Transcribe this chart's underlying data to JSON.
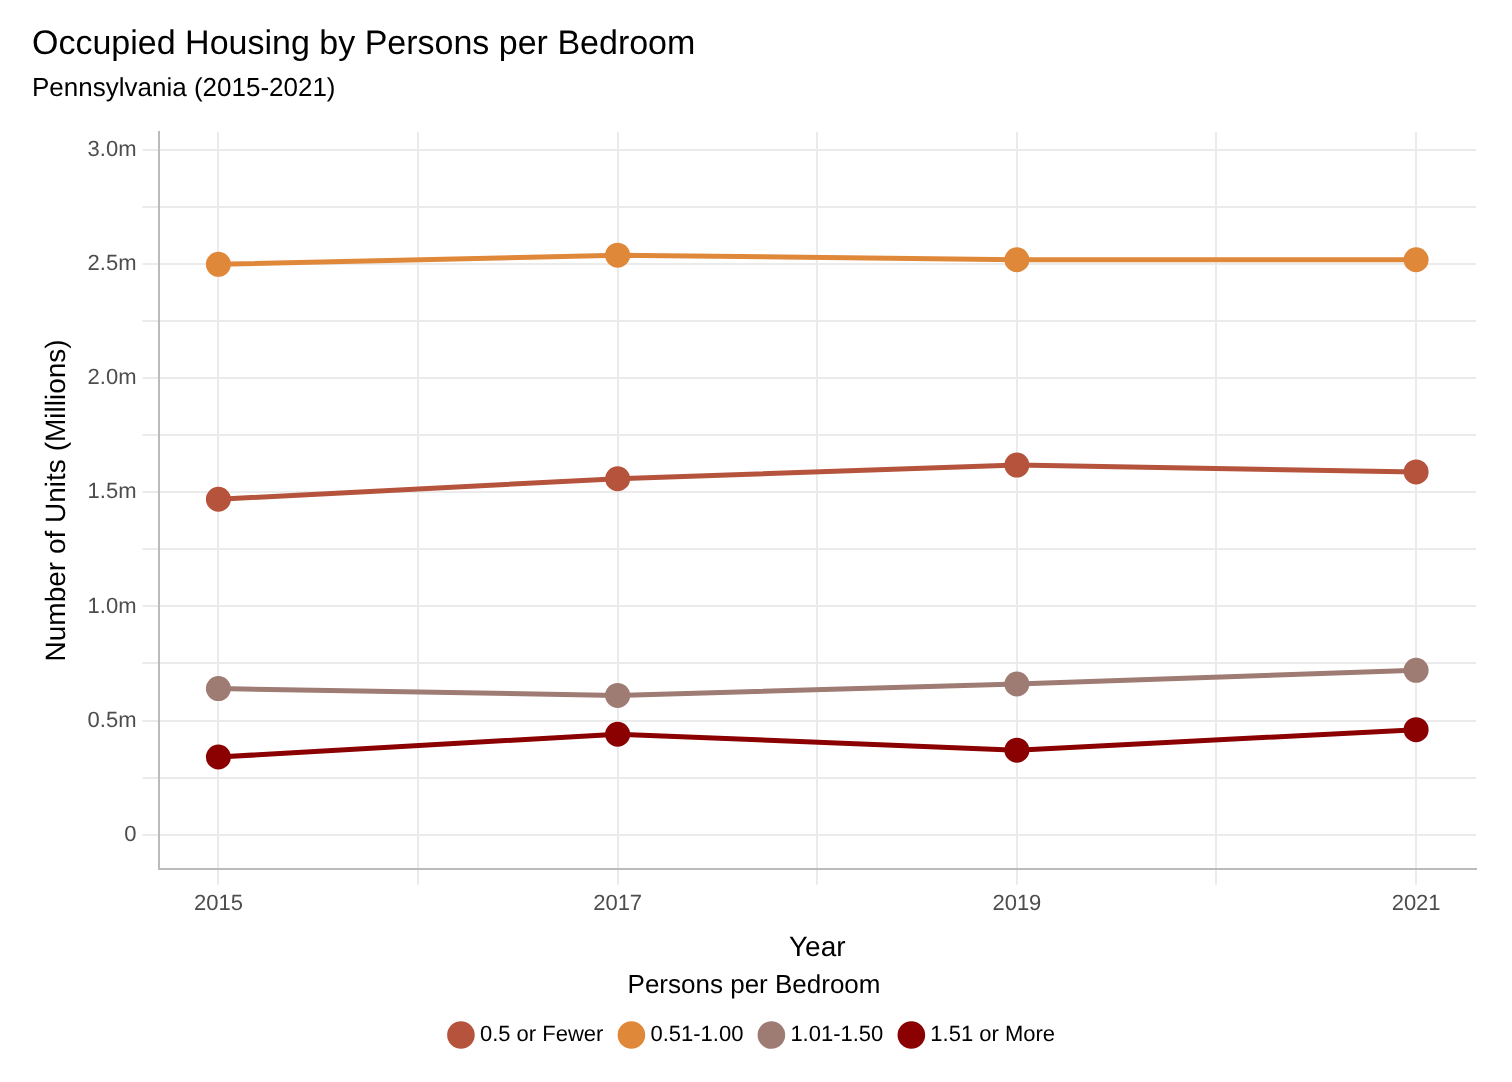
{
  "chart_data": {
    "type": "line",
    "title": "Occupied Housing by Persons per Bedroom",
    "subtitle": "Pennsylvania (2015-2021)",
    "xlabel": "Year",
    "ylabel": "Number of Units (Millions)",
    "legend_title": "Persons per Bedroom",
    "x": [
      2015,
      2017,
      2019,
      2021
    ],
    "series": [
      {
        "name": "0.5 or Fewer",
        "color": "#b5533c",
        "values": [
          1.47,
          1.56,
          1.62,
          1.59
        ]
      },
      {
        "name": "0.51-1.00",
        "color": "#e0883a",
        "values": [
          2.5,
          2.54,
          2.52,
          2.52
        ]
      },
      {
        "name": "1.01-1.50",
        "color": "#9e7b73",
        "values": [
          0.64,
          0.61,
          0.66,
          0.72
        ]
      },
      {
        "name": "1.51 or More",
        "color": "#8b0000",
        "values": [
          0.34,
          0.44,
          0.37,
          0.46
        ]
      }
    ],
    "xlim": [
      2014.7,
      2021.3
    ],
    "xticks": [
      2015,
      {
        "value": 2016,
        "label": null
      },
      2017,
      {
        "value": 2018,
        "label": null
      },
      2019,
      {
        "value": 2020,
        "label": null
      },
      2021
    ],
    "ylim": [
      -0.15,
      3.08
    ],
    "yticks": [
      {
        "value": 0,
        "label": "0"
      },
      {
        "value": 0.25,
        "label": null
      },
      {
        "value": 0.5,
        "label": "0.5m"
      },
      {
        "value": 0.75,
        "label": null
      },
      {
        "value": 1.0,
        "label": "1.0m"
      },
      {
        "value": 1.25,
        "label": null
      },
      {
        "value": 1.5,
        "label": "1.5m"
      },
      {
        "value": 1.75,
        "label": null
      },
      {
        "value": 2.0,
        "label": "2.0m"
      },
      {
        "value": 2.25,
        "label": null
      },
      {
        "value": 2.5,
        "label": "2.5m"
      },
      {
        "value": 2.75,
        "label": null
      },
      {
        "value": 3.0,
        "label": "3.0m"
      }
    ],
    "grid": true,
    "legend": "bottom",
    "marker": "circle",
    "line_style": "solid"
  }
}
